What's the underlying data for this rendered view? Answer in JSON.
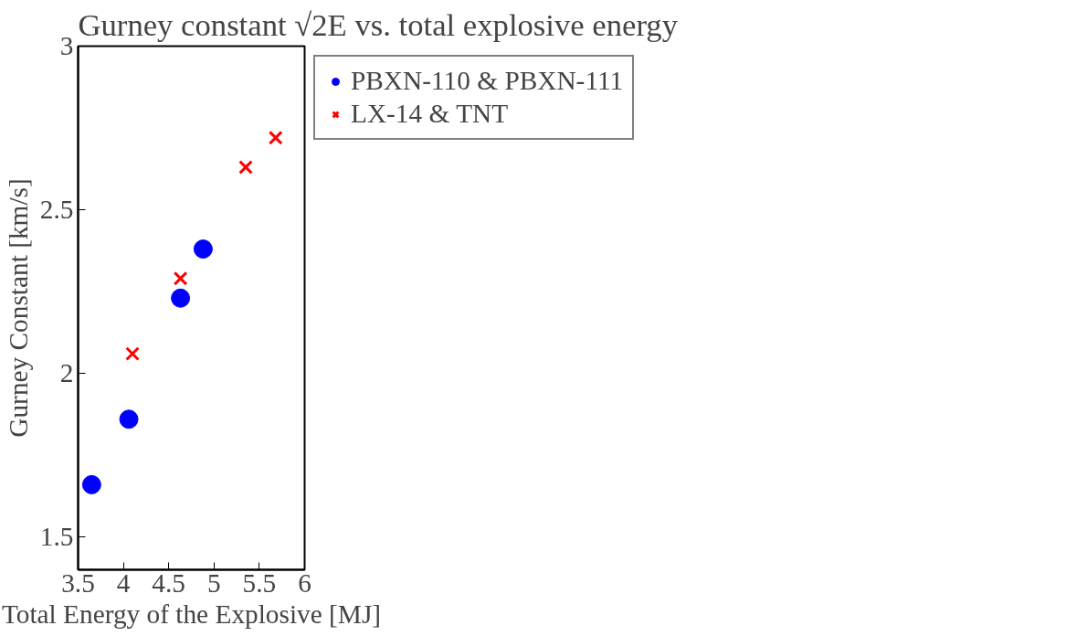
{
  "chart_data": {
    "type": "scatter",
    "title": "Gurney constant √2E vs. total explosive energy",
    "xlabel": "Total Energy of the Explosive [MJ]",
    "ylabel": "Gurney Constant [km/s]",
    "xlim": [
      3.5,
      6
    ],
    "ylim": [
      1.4,
      3
    ],
    "xticks": [
      3.5,
      4,
      4.5,
      5,
      5.5,
      6
    ],
    "yticks": [
      1.5,
      2,
      2.5,
      3
    ],
    "grid": false,
    "legend": "top right",
    "series": [
      {
        "name": "PBXN-110 & PBXN-111",
        "color": "#0000ff",
        "marker": "circle",
        "x": [
          3.65,
          4.06,
          4.63,
          4.88
        ],
        "values": [
          1.66,
          1.86,
          2.23,
          2.38
        ]
      },
      {
        "name": "LX-14 & TNT",
        "color": "#ff0000",
        "marker": "cross",
        "x": [
          4.1,
          4.63,
          5.35,
          5.68
        ],
        "values": [
          2.06,
          2.29,
          2.63,
          2.72
        ]
      }
    ]
  }
}
